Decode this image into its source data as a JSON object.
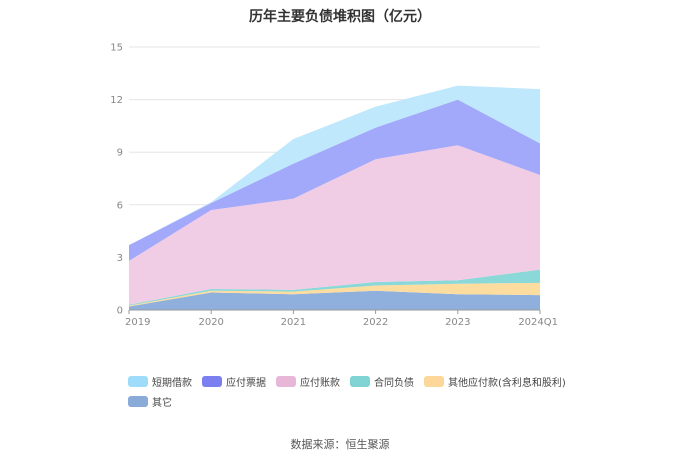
{
  "chart_data": {
    "type": "area",
    "stacked": true,
    "title": "历年主要负债堆积图（亿元）",
    "categories": [
      "2019",
      "2020",
      "2021",
      "2022",
      "2023",
      "2024Q1"
    ],
    "y_ticks": [
      0,
      3,
      6,
      9,
      12,
      15
    ],
    "ylim": [
      0,
      15
    ],
    "grid": true,
    "legend_position": "bottom",
    "series": [
      {
        "name": "其它",
        "color": "#8fb0dc",
        "values": [
          0.2,
          1.0,
          0.9,
          1.1,
          0.9,
          0.85
        ]
      },
      {
        "name": "其他应付款(含利息和股利)",
        "color": "#fddca0",
        "values": [
          0.05,
          0.1,
          0.15,
          0.3,
          0.6,
          0.7
        ]
      },
      {
        "name": "合同负债",
        "color": "#8ad8d8",
        "values": [
          0.05,
          0.1,
          0.1,
          0.2,
          0.2,
          0.75
        ]
      },
      {
        "name": "应付账款",
        "color": "#f0cde5",
        "values": [
          2.5,
          4.5,
          5.2,
          7.0,
          7.7,
          5.4
        ]
      },
      {
        "name": "应付票据",
        "color": "#a2a8fa",
        "values": [
          0.9,
          0.4,
          2.0,
          1.8,
          2.6,
          1.8
        ]
      },
      {
        "name": "短期借款",
        "color": "#bfe8fc",
        "values": [
          0.0,
          0.05,
          1.4,
          1.2,
          0.8,
          3.1
        ]
      }
    ],
    "legend_order": [
      "短期借款",
      "应付票据",
      "应付账款",
      "合同负债",
      "其他应付款(含利息和股利)",
      "其它"
    ],
    "legend_colors": {
      "短期借款": "#9fdcfa",
      "应付票据": "#7b7ff0",
      "应付账款": "#e8b7d8",
      "合同负债": "#7fd3d3",
      "其他应付款(含利息和股利)": "#fdd79a",
      "其它": "#8aaad8"
    }
  },
  "source_text": "数据来源：恒生聚源"
}
